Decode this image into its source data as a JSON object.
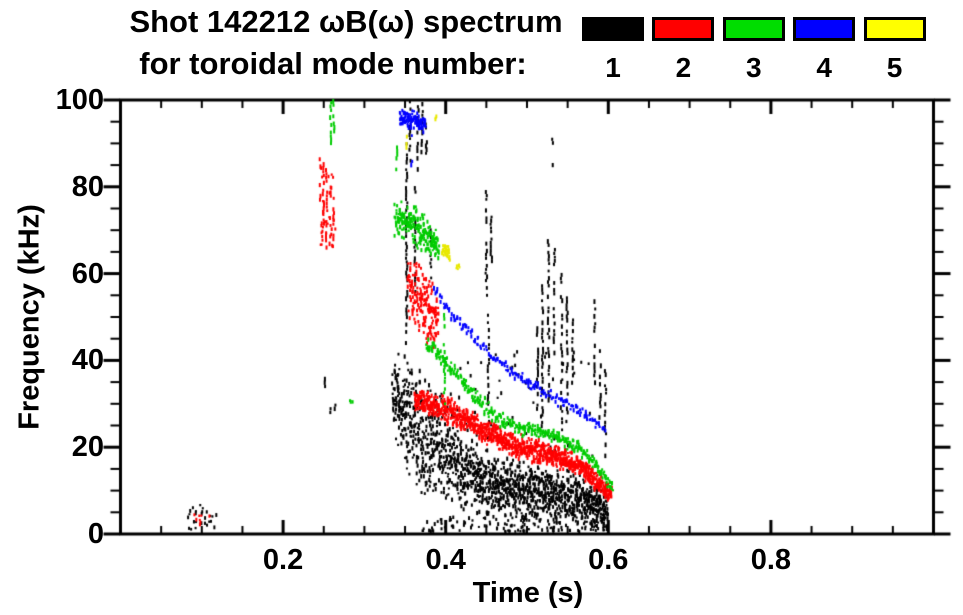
{
  "chart_data": {
    "type": "scatter",
    "subtype": "magnetic-spectrogram",
    "title_line1": "Shot 142212 ωB(ω) spectrum",
    "title_line2": "for toroidal mode number:",
    "xlabel": "Time (s)",
    "ylabel": "Frequency (kHz)",
    "xlim": [
      0.0,
      1.0
    ],
    "ylim": [
      0,
      100
    ],
    "grid": false,
    "xticks": [
      {
        "v": 0.2,
        "label": "0.2"
      },
      {
        "v": 0.4,
        "label": "0.4"
      },
      {
        "v": 0.6,
        "label": "0.6"
      },
      {
        "v": 0.8,
        "label": "0.8"
      }
    ],
    "x_minor_step": 0.05,
    "yticks": [
      {
        "v": 0,
        "label": "0"
      },
      {
        "v": 20,
        "label": "20"
      },
      {
        "v": 40,
        "label": "40"
      },
      {
        "v": 60,
        "label": "60"
      },
      {
        "v": 80,
        "label": "80"
      },
      {
        "v": 100,
        "label": "100"
      }
    ],
    "y_minor_step": 5,
    "legend": {
      "position": "top-right",
      "entries": [
        {
          "label": "1",
          "color": "#000000"
        },
        {
          "label": "2",
          "color": "#ff0000"
        },
        {
          "label": "3",
          "color": "#00dd00"
        },
        {
          "label": "4",
          "color": "#0000ff"
        },
        {
          "label": "5",
          "color": "#ffff00"
        }
      ]
    },
    "series": [
      {
        "name": "toroidal mode n=1",
        "legend_label": "1",
        "color": "#000000",
        "features": [
          {
            "kind": "specks",
            "t": [
              0.083,
              0.118
            ],
            "f": [
              1,
              7
            ],
            "n": 26
          },
          {
            "kind": "vspikes",
            "items": [
              [
                0.2515,
                34,
                38.5
              ],
              [
                0.258,
                28,
                30.5
              ],
              [
                0.2635,
                28,
                30
              ]
            ]
          },
          {
            "kind": "band",
            "density": 7,
            "points": [
              [
                0.335,
                33,
                9
              ],
              [
                0.345,
                29,
                13
              ],
              [
                0.355,
                26,
                15
              ],
              [
                0.37,
                23,
                15
              ],
              [
                0.39,
                21,
                14
              ],
              [
                0.41,
                17,
                12
              ],
              [
                0.435,
                13,
                9
              ],
              [
                0.46,
                11,
                8
              ],
              [
                0.49,
                10,
                7
              ],
              [
                0.52,
                9,
                7
              ],
              [
                0.55,
                8.5,
                6.5
              ],
              [
                0.575,
                7.5,
                6
              ],
              [
                0.6,
                5,
                4.5
              ]
            ]
          },
          {
            "kind": "specks",
            "t": [
              0.37,
              0.6
            ],
            "f": [
              0.5,
              4
            ],
            "n": 140
          },
          {
            "kind": "specks",
            "t": [
              0.4,
              0.585
            ],
            "f": [
              14,
              42
            ],
            "n": 70
          },
          {
            "kind": "vspikes",
            "items": [
              [
                0.352,
                44,
                90
              ],
              [
                0.356,
                86,
                100
              ],
              [
                0.362,
                55,
                80
              ],
              [
                0.366,
                84,
                99
              ],
              [
                0.371,
                88,
                100
              ],
              [
                0.376,
                86,
                95
              ],
              [
                0.382,
                59,
                71
              ]
            ]
          },
          {
            "kind": "vspikes",
            "items": [
              [
                0.45,
                55,
                81
              ],
              [
                0.4525,
                30,
                52
              ],
              [
                0.456,
                62,
                74
              ]
            ]
          },
          {
            "kind": "vspikes",
            "items": [
              [
                0.513,
                28,
                50
              ],
              [
                0.519,
                24,
                58
              ],
              [
                0.5265,
                30,
                68
              ],
              [
                0.531,
                85,
                92
              ],
              [
                0.5335,
                40,
                66
              ],
              [
                0.5425,
                24,
                60
              ],
              [
                0.5495,
                28,
                55
              ],
              [
                0.556,
                34,
                50
              ]
            ]
          },
          {
            "kind": "vspikes",
            "items": [
              [
                0.583,
                34,
                54
              ],
              [
                0.59,
                26,
                45
              ],
              [
                0.5965,
                18,
                38
              ]
            ]
          }
        ]
      },
      {
        "name": "toroidal mode n=2",
        "legend_label": "2",
        "color": "#ff0000",
        "features": [
          {
            "kind": "specks",
            "t": [
              0.088,
              0.112
            ],
            "f": [
              2,
              6
            ],
            "n": 8
          },
          {
            "kind": "vspikes",
            "items": [
              [
                0.2455,
                77,
                87
              ],
              [
                0.2495,
                69,
                86
              ],
              [
                0.2535,
                66,
                84
              ],
              [
                0.258,
                66,
                80
              ],
              [
                0.2625,
                68,
                79
              ]
            ]
          },
          {
            "kind": "specks",
            "t": [
              0.244,
              0.265
            ],
            "f": [
              66,
              86
            ],
            "n": 30
          },
          {
            "kind": "band",
            "density": 6,
            "points": [
              [
                0.354,
                57,
                7
              ],
              [
                0.363,
                55,
                9
              ],
              [
                0.373,
                53,
                9
              ],
              [
                0.383,
                50,
                8
              ],
              [
                0.392,
                48,
                6
              ]
            ]
          },
          {
            "kind": "band",
            "density": 6,
            "points": [
              [
                0.362,
                30.5,
                2.5
              ],
              [
                0.38,
                30,
                3
              ],
              [
                0.4,
                28.5,
                3.5
              ],
              [
                0.42,
                26.5,
                3.5
              ],
              [
                0.445,
                24,
                3
              ],
              [
                0.47,
                21.5,
                3
              ],
              [
                0.5,
                19.5,
                3
              ],
              [
                0.53,
                18,
                3
              ],
              [
                0.55,
                17,
                2.8
              ],
              [
                0.565,
                15.5,
                2.6
              ],
              [
                0.58,
                13,
                2.6
              ],
              [
                0.595,
                10.5,
                2.5
              ],
              [
                0.605,
                9,
                2
              ]
            ]
          }
        ]
      },
      {
        "name": "toroidal mode n=3",
        "legend_label": "3",
        "color": "#00cc00",
        "features": [
          {
            "kind": "vspikes",
            "items": [
              [
                0.2585,
                90,
                100
              ],
              [
                0.2625,
                92,
                100
              ],
              [
                0.3395,
                84,
                90
              ],
              [
                0.3985,
                30,
                52
              ]
            ]
          },
          {
            "kind": "specks",
            "t": [
              0.282,
              0.287
            ],
            "f": [
              30,
              32
            ],
            "n": 3
          },
          {
            "kind": "band",
            "density": 5,
            "points": [
              [
                0.338,
                73,
                5
              ],
              [
                0.35,
                73,
                5.5
              ],
              [
                0.362,
                71.5,
                5.5
              ],
              [
                0.374,
                69.5,
                5
              ],
              [
                0.385,
                67,
                4
              ],
              [
                0.392,
                65.5,
                3
              ]
            ]
          },
          {
            "kind": "band",
            "density": 2.2,
            "points": [
              [
                0.377,
                43.5,
                2
              ],
              [
                0.39,
                41.5,
                2
              ],
              [
                0.41,
                37.5,
                2
              ],
              [
                0.43,
                33,
                2
              ],
              [
                0.45,
                29,
                2
              ],
              [
                0.47,
                26,
                2
              ],
              [
                0.49,
                24.5,
                1.8
              ],
              [
                0.52,
                23.5,
                1.8
              ],
              [
                0.55,
                21,
                1.8
              ],
              [
                0.57,
                19,
                1.8
              ],
              [
                0.585,
                16,
                1.8
              ],
              [
                0.597,
                13,
                1.8
              ],
              [
                0.606,
                10,
                1.5
              ]
            ]
          }
        ]
      },
      {
        "name": "toroidal mode n=4",
        "legend_label": "4",
        "color": "#0000ff",
        "features": [
          {
            "kind": "band",
            "density": 4,
            "points": [
              [
                0.344,
                96,
                2.5
              ],
              [
                0.355,
                95.5,
                2.5
              ],
              [
                0.366,
                95,
                2.5
              ],
              [
                0.376,
                94,
                2
              ]
            ]
          },
          {
            "kind": "vspikes",
            "items": [
              [
                0.358,
                85,
                94
              ]
            ]
          },
          {
            "kind": "band",
            "density": 1.1,
            "points": [
              [
                0.385,
                57,
                1.5
              ],
              [
                0.405,
                51,
                1.5
              ],
              [
                0.43,
                46,
                1.5
              ],
              [
                0.455,
                41.5,
                1.5
              ],
              [
                0.48,
                37.5,
                1.5
              ],
              [
                0.505,
                34.5,
                1.5
              ],
              [
                0.53,
                31.5,
                1.5
              ],
              [
                0.555,
                29.5,
                1.3
              ],
              [
                0.575,
                27,
                1.3
              ],
              [
                0.597,
                24,
                1.3
              ]
            ]
          }
        ]
      },
      {
        "name": "toroidal mode n=5",
        "legend_label": "5",
        "color": "#e8e800",
        "features": [
          {
            "kind": "vspikes",
            "items": [
              [
                0.3515,
                89,
                92.5
              ]
            ]
          },
          {
            "kind": "specks",
            "t": [
              0.386,
              0.389
            ],
            "f": [
              95,
              97
            ],
            "n": 3
          },
          {
            "kind": "band",
            "density": 4,
            "points": [
              [
                0.3965,
                65.5,
                1.6
              ],
              [
                0.401,
                65,
                1.8
              ],
              [
                0.4055,
                64,
                1.5
              ]
            ]
          },
          {
            "kind": "specks",
            "t": [
              0.413,
              0.417
            ],
            "f": [
              61,
              62.5
            ],
            "n": 6
          }
        ]
      }
    ]
  }
}
